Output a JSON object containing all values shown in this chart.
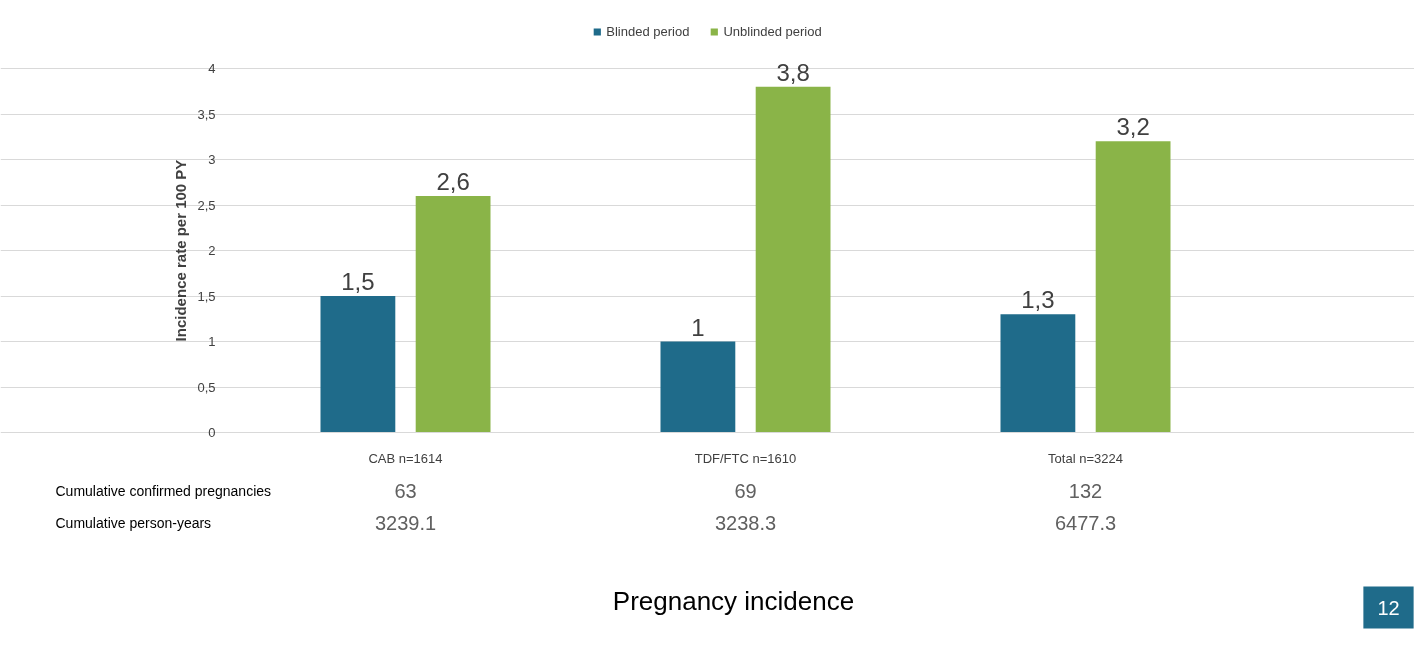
{
  "chart_data": {
    "type": "bar",
    "title": "Pregnancy incidence",
    "ylabel": "Incidence rate per 100 PY",
    "categories": [
      "CAB n=1614",
      "TDF/FTC n=1610",
      "Total n=3224"
    ],
    "series": [
      {
        "name": "Blinded period",
        "color": "#1f6b8a",
        "values": [
          1.5,
          1,
          1.3
        ],
        "value_labels": [
          "1,5",
          "1",
          "1,3"
        ]
      },
      {
        "name": "Unblinded period",
        "color": "#8ab448",
        "values": [
          2.6,
          3.8,
          3.2
        ],
        "value_labels": [
          "2,6",
          "3,8",
          "3,2"
        ]
      }
    ],
    "ylim": [
      0,
      4
    ],
    "yticks": [
      0,
      {
        "value": 0.5,
        "label": "0,5"
      },
      1,
      {
        "value": 1.5,
        "label": "1,5"
      },
      2,
      {
        "value": 2.5,
        "label": "2,5"
      },
      3,
      {
        "value": 3.5,
        "label": "3,5"
      },
      4
    ],
    "grid": "y",
    "legend": "top",
    "annotations": [
      "Cumulative confirmed pregnancies",
      "63",
      "69",
      "132",
      "Cumulative person-years",
      "3239.1",
      "3238.3",
      "6477.3",
      "12"
    ]
  }
}
